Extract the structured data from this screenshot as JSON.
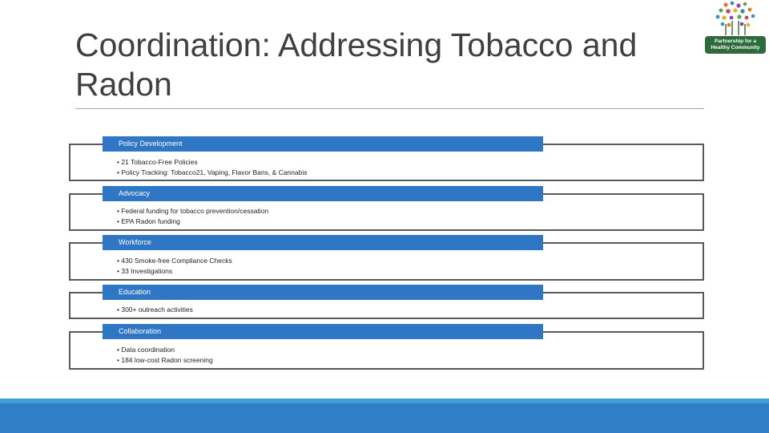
{
  "title_line1": "Coordination:  Addressing Tobacco and",
  "title_line2": "Radon",
  "logo": {
    "line1": "Partnership for a",
    "line2": "Healthy Community",
    "icon": "tree-of-dots-icon",
    "dot_colors": [
      "#e07a2e",
      "#3b8fd0",
      "#8a4aa8",
      "#5aa845",
      "#e0b02e",
      "#2b9aa0",
      "#c94a5a"
    ]
  },
  "sections": [
    {
      "header": "Policy Development",
      "bullets": [
        "• 21 Tobacco-Free Policies",
        "• Policy Tracking: Tobacco21, Vaping, Flavor Bans, & Cannabis"
      ]
    },
    {
      "header": "Advocacy",
      "bullets": [
        "• Federal funding for tobacco prevention/cessation",
        "• EPA Radon funding"
      ]
    },
    {
      "header": "Workforce",
      "bullets": [
        "• 430 Smoke-free Compliance Checks",
        "• 33 Investigations"
      ]
    },
    {
      "header": "Education",
      "bullets": [
        "• 300+ outreach activities"
      ]
    },
    {
      "header": "Collaboration",
      "bullets": [
        "• Data coordination",
        "• 184 low-cost Radon screening"
      ]
    }
  ],
  "colors": {
    "header_blue": "#2f77c4",
    "footer_blue": "#2f7fc6",
    "box_border": "#555a60",
    "logo_green": "#2d6b3a"
  }
}
